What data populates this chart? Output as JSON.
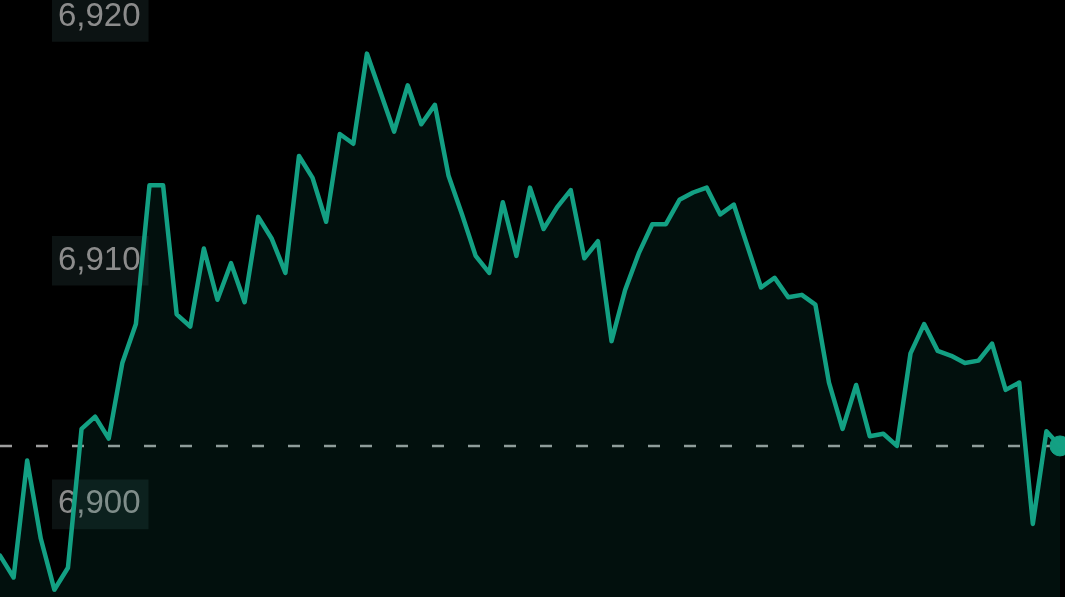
{
  "chart_data": {
    "type": "area",
    "categories": [
      null,
      null,
      null,
      null,
      null,
      null,
      null,
      null,
      null,
      null,
      null,
      null,
      null,
      null,
      null,
      null,
      null,
      null,
      null,
      null,
      null,
      null,
      null,
      null,
      null,
      null,
      null,
      null,
      null,
      null,
      null,
      null,
      null,
      null,
      null,
      null,
      null,
      null,
      null,
      null,
      null,
      null,
      null,
      null,
      null,
      null,
      null,
      null,
      null,
      null,
      null,
      null,
      null,
      null,
      null,
      null,
      null,
      null,
      null,
      null,
      null,
      null,
      null,
      null,
      null,
      null,
      null,
      null,
      null,
      null,
      null,
      null,
      null,
      null,
      null,
      null,
      null,
      null,
      null
    ],
    "series": [
      {
        "color": "#13a083",
        "values": [
          6897.9,
          6897.0,
          6901.8,
          6898.6,
          6896.5,
          6897.4,
          6903.1,
          6903.6,
          6902.7,
          6905.8,
          6907.4,
          6913.1,
          6913.1,
          6907.8,
          6907.3,
          6910.5,
          6908.4,
          6909.9,
          6908.3,
          6911.8,
          6910.9,
          6909.5,
          6914.3,
          6913.4,
          6911.6,
          6915.2,
          6914.8,
          6918.5,
          6916.9,
          6915.3,
          6917.2,
          6915.6,
          6916.4,
          6913.5,
          6911.9,
          6910.2,
          6909.5,
          6912.4,
          6910.2,
          6913.0,
          6911.3,
          6912.2,
          6912.9,
          6910.1,
          6910.8,
          6906.7,
          6908.8,
          6910.3,
          6911.5,
          6911.5,
          6912.5,
          6912.8,
          6913.0,
          6911.9,
          6912.3,
          6910.6,
          6908.9,
          6909.3,
          6908.5,
          6908.6,
          6908.2,
          6905.0,
          6903.1,
          6904.9,
          6902.8,
          6902.9,
          6902.4,
          6906.2,
          6907.4,
          6906.3,
          6906.1,
          6905.8,
          6905.9,
          6906.6,
          6904.7,
          6905.0,
          6899.2,
          6903.0,
          6902.4
        ]
      },
      {
        "type": "scatter",
        "marker": "circle",
        "color": "#13a083",
        "values": [
          null,
          null,
          null,
          null,
          null,
          null,
          null,
          null,
          null,
          null,
          null,
          null,
          null,
          null,
          null,
          null,
          null,
          null,
          null,
          null,
          null,
          null,
          null,
          null,
          null,
          null,
          null,
          null,
          null,
          null,
          null,
          null,
          null,
          null,
          null,
          null,
          null,
          null,
          null,
          null,
          null,
          null,
          null,
          null,
          null,
          null,
          null,
          null,
          null,
          null,
          null,
          null,
          null,
          null,
          null,
          null,
          null,
          null,
          null,
          null,
          null,
          null,
          null,
          null,
          null,
          null,
          null,
          null,
          null,
          null,
          null,
          null,
          null,
          null,
          null,
          null,
          null,
          null,
          6902.4
        ]
      }
    ],
    "ylim": [
      6896.2,
      6920.7
    ],
    "yticks": [
      {
        "value": 6900,
        "label": "6,900"
      },
      {
        "value": 6910,
        "label": "6,910"
      },
      {
        "value": 6920,
        "label": "6,920"
      }
    ],
    "tick_labels": "y",
    "ref_lines": [
      {
        "axis": "y",
        "value": 6902.4,
        "line_style": "dashed",
        "color": "#9e9e9e"
      }
    ]
  }
}
